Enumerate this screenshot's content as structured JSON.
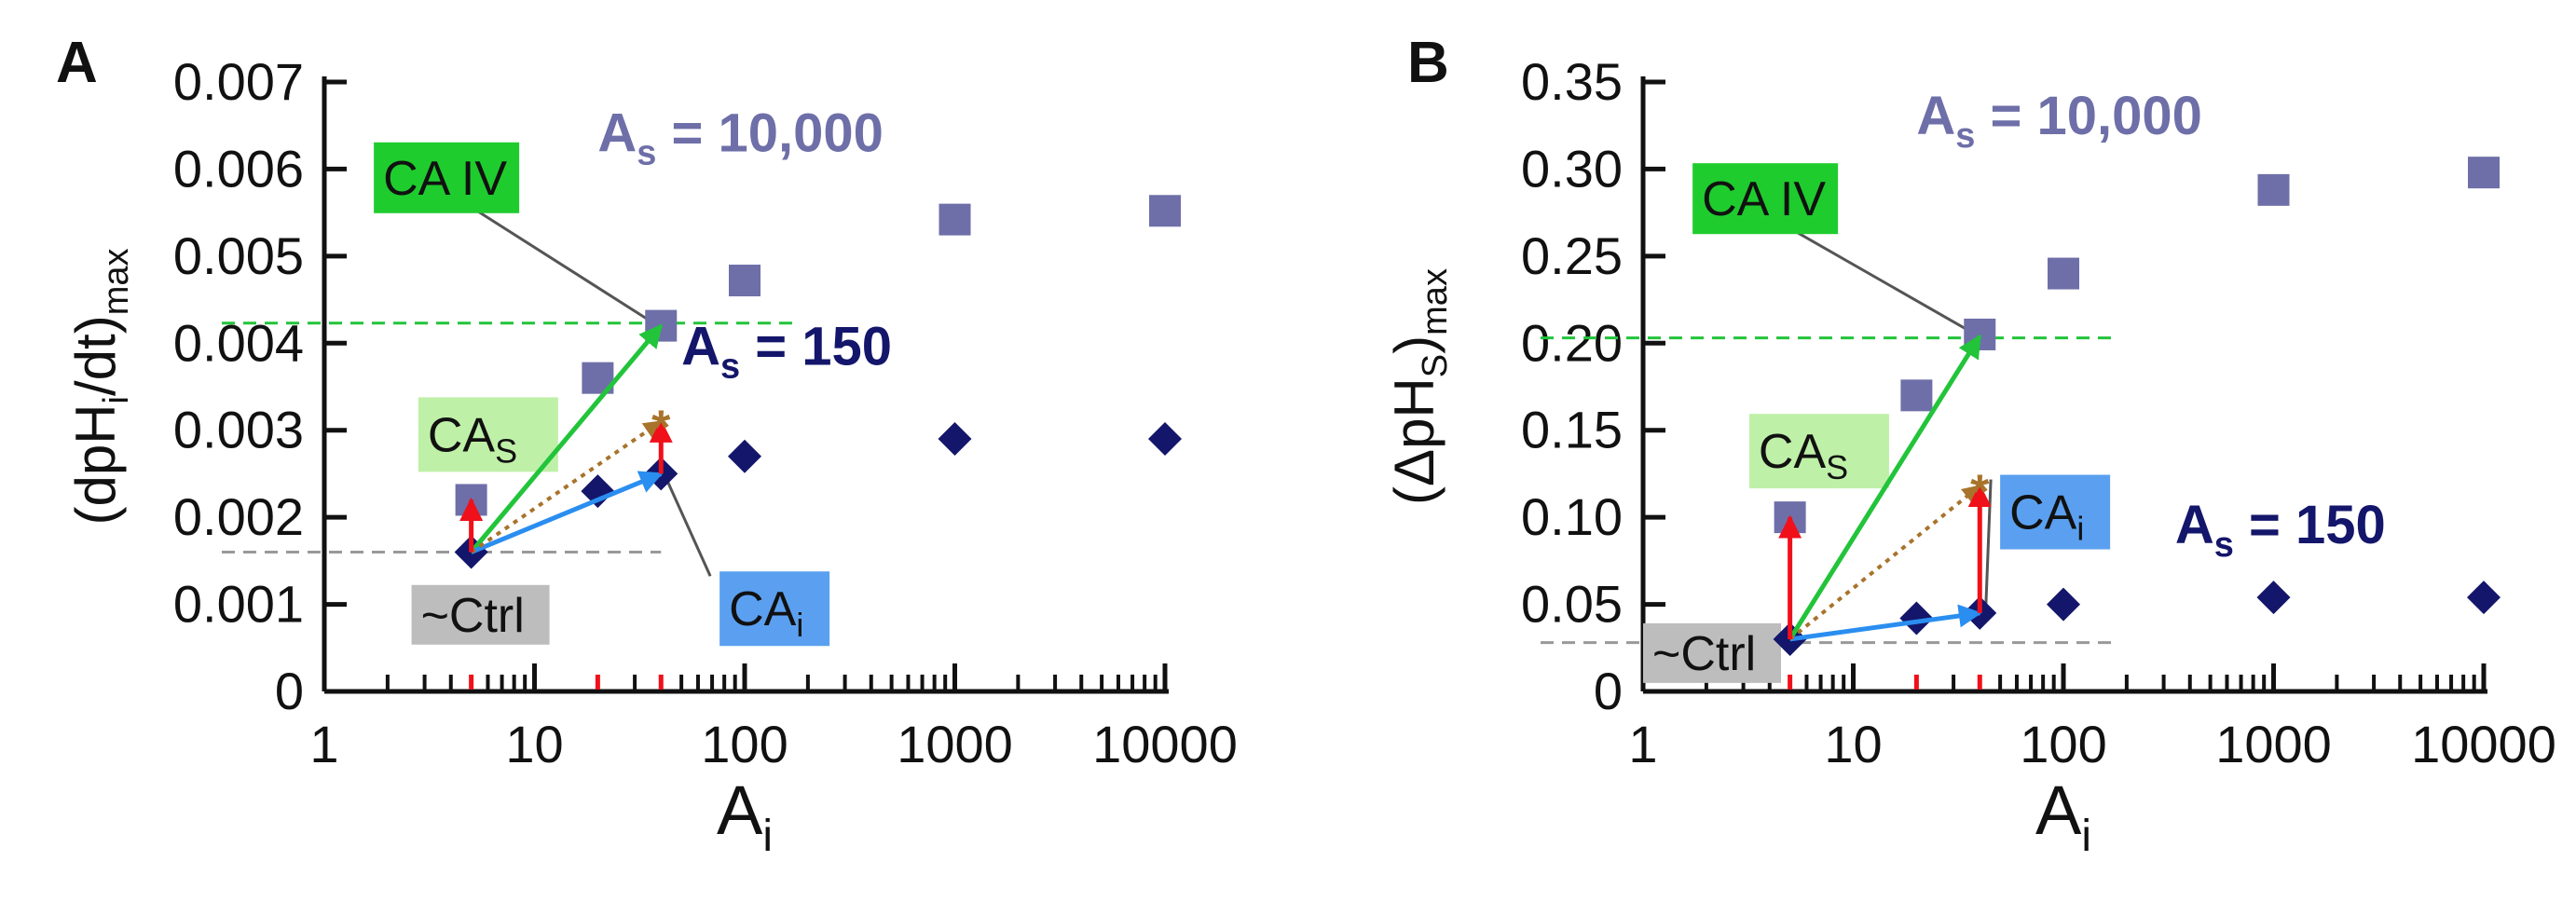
{
  "colors": {
    "square": "#6e6fa8",
    "diamond": "#13166a",
    "green": "#22c43a",
    "blue": "#2a8ef0",
    "red": "#f0101a",
    "brown": "#a8732b",
    "ca_iv_box": "#1fcc2e",
    "ca_s_box": "#bff0a8",
    "ca_i_box": "#5ba0f0",
    "ctrl_box": "#bdbdbd"
  },
  "chart_data": [
    {
      "type": "scatter",
      "panel_label": "A",
      "title": "",
      "xlabel": {
        "main": "A",
        "sub": "i"
      },
      "ylabel": {
        "prefix": "(dpH",
        "sub1": "i",
        "mid": "/dt)",
        "sub2": "max"
      },
      "xscale": "log",
      "xlim": [
        1,
        10000
      ],
      "ylim": [
        0,
        0.007
      ],
      "x_ticks": [
        "1",
        "10",
        "100",
        "1000",
        "10000"
      ],
      "y_ticks": [
        "0",
        "0.001",
        "0.002",
        "0.003",
        "0.004",
        "0.005",
        "0.006",
        "0.007"
      ],
      "highlighted_x": [
        5,
        20,
        40
      ],
      "series": [
        {
          "name": "As = 10,000",
          "label_main": "A",
          "label_sub": "s",
          "label_rest": " = 10,000",
          "marker": "square",
          "x": [
            5,
            20,
            40,
            100,
            1000,
            10000
          ],
          "y": [
            0.0022,
            0.0036,
            0.0042,
            0.00472,
            0.00542,
            0.00552
          ]
        },
        {
          "name": "As = 150",
          "label_main": "A",
          "label_sub": "s",
          "label_rest": " = 150",
          "marker": "diamond",
          "x": [
            5,
            20,
            40,
            100,
            1000,
            10000
          ],
          "y": [
            0.0016,
            0.0023,
            0.0025,
            0.0027,
            0.0029,
            0.0029
          ]
        }
      ],
      "reference_lines": [
        {
          "name": "ca-iv-level",
          "y": 0.00423,
          "x_end": 180,
          "color": "green"
        },
        {
          "name": "ctrl-level",
          "y": 0.0016,
          "x_end": 40,
          "color": "gray"
        }
      ],
      "arrows": [
        {
          "name": "ca-iv-arrow",
          "from": [
            5,
            0.0016
          ],
          "to": [
            40,
            0.0042
          ],
          "color": "green"
        },
        {
          "name": "ca-i-arrow",
          "from": [
            5,
            0.0016
          ],
          "to": [
            40,
            0.0025
          ],
          "color": "blue"
        },
        {
          "name": "sum-arrow",
          "from": [
            5,
            0.0016
          ],
          "to": [
            40,
            0.0031
          ],
          "color": "brown",
          "dotted": true
        },
        {
          "name": "ca-s-arrow-low",
          "from": [
            5,
            0.0016
          ],
          "to": [
            5,
            0.0022
          ],
          "color": "red"
        },
        {
          "name": "ca-s-arrow-high",
          "from": [
            40,
            0.0025
          ],
          "to": [
            40,
            0.0031
          ],
          "color": "red"
        }
      ],
      "star": {
        "x": 40,
        "y": 0.0031
      },
      "annotations": [
        {
          "key": "ca_iv",
          "text": "CA IV",
          "anchor": [
            1.72,
            0.0059
          ],
          "box": "ca_iv_box",
          "leader_to": [
            40,
            0.0042
          ]
        },
        {
          "key": "ca_s",
          "main": "CA",
          "sub": "S",
          "anchor": [
            2.8,
            0.00295
          ],
          "box": "ca_s_box"
        },
        {
          "key": "ca_i",
          "main": "CA",
          "sub": "i",
          "anchor": [
            76,
            0.00095
          ],
          "box": "ca_i_box",
          "leader_to": [
            40,
            0.0025
          ]
        },
        {
          "key": "ctrl",
          "text": "~Ctrl",
          "anchor": [
            2.6,
            0.00088
          ],
          "box": "ctrl_box"
        }
      ],
      "series_labels": [
        {
          "series": 0,
          "anchor": [
            20,
            0.0062
          ]
        },
        {
          "series": 1,
          "anchor": [
            50,
            0.00375
          ]
        }
      ]
    },
    {
      "type": "scatter",
      "panel_label": "B",
      "title": "",
      "xlabel": {
        "main": "A",
        "sub": "i"
      },
      "ylabel": {
        "prefix": "(ΔpH",
        "sub1": "S",
        "mid": ")",
        "sub2": "max"
      },
      "xscale": "log",
      "xlim": [
        1,
        10000
      ],
      "ylim": [
        0,
        0.35
      ],
      "x_ticks": [
        "1",
        "10",
        "100",
        "1000",
        "10000"
      ],
      "y_ticks": [
        "0",
        "0.05",
        "0.10",
        "0.15",
        "0.20",
        "0.25",
        "0.30",
        "0.35"
      ],
      "highlighted_x": [
        5,
        20,
        40
      ],
      "series": [
        {
          "name": "As = 10,000",
          "label_main": "A",
          "label_sub": "s",
          "label_rest": " = 10,000",
          "marker": "square",
          "x": [
            5,
            20,
            40,
            100,
            1000,
            10000
          ],
          "y": [
            0.1,
            0.17,
            0.205,
            0.24,
            0.288,
            0.298
          ]
        },
        {
          "name": "As = 150",
          "label_main": "A",
          "label_sub": "s",
          "label_rest": " = 150",
          "marker": "diamond",
          "x": [
            5,
            20,
            40,
            100,
            1000,
            10000
          ],
          "y": [
            0.03,
            0.042,
            0.045,
            0.05,
            0.054,
            0.054
          ]
        }
      ],
      "reference_lines": [
        {
          "name": "ca-iv-level",
          "y": 0.203,
          "x_end": 180,
          "color": "green"
        },
        {
          "name": "ctrl-level",
          "y": 0.028,
          "x_end": 180,
          "color": "gray"
        }
      ],
      "arrows": [
        {
          "name": "ca-iv-arrow",
          "from": [
            5,
            0.03
          ],
          "to": [
            40,
            0.204
          ],
          "color": "green"
        },
        {
          "name": "ca-i-arrow",
          "from": [
            5,
            0.03
          ],
          "to": [
            40,
            0.045
          ],
          "color": "blue"
        },
        {
          "name": "sum-arrow",
          "from": [
            5,
            0.03
          ],
          "to": [
            40,
            0.118
          ],
          "color": "brown",
          "dotted": true
        },
        {
          "name": "ca-s-arrow-low",
          "from": [
            5,
            0.03
          ],
          "to": [
            5,
            0.1
          ],
          "color": "red"
        },
        {
          "name": "ca-s-arrow-high",
          "from": [
            40,
            0.045
          ],
          "to": [
            40,
            0.118
          ],
          "color": "red"
        }
      ],
      "star": {
        "x": 40,
        "y": 0.118
      },
      "annotations": [
        {
          "key": "ca_iv",
          "text": "CA IV",
          "anchor": [
            1.72,
            0.283
          ],
          "box": "ca_iv_box",
          "leader_to": [
            40,
            0.205
          ]
        },
        {
          "key": "ca_s",
          "main": "CA",
          "sub": "S",
          "anchor": [
            3.2,
            0.138
          ],
          "box": "ca_s_box"
        },
        {
          "key": "ca_i",
          "main": "CA",
          "sub": "i",
          "anchor": [
            50,
            0.103
          ],
          "box": "ca_i_box",
          "leader_to": [
            40,
            0.045
          ]
        },
        {
          "key": "ctrl",
          "text": "~Ctrl",
          "anchor": [
            1.0,
            0.022
          ],
          "box": "ctrl_box"
        }
      ],
      "series_labels": [
        {
          "series": 0,
          "anchor": [
            20,
            0.32
          ]
        },
        {
          "series": 1,
          "anchor": [
            340,
            0.085
          ]
        }
      ]
    }
  ]
}
